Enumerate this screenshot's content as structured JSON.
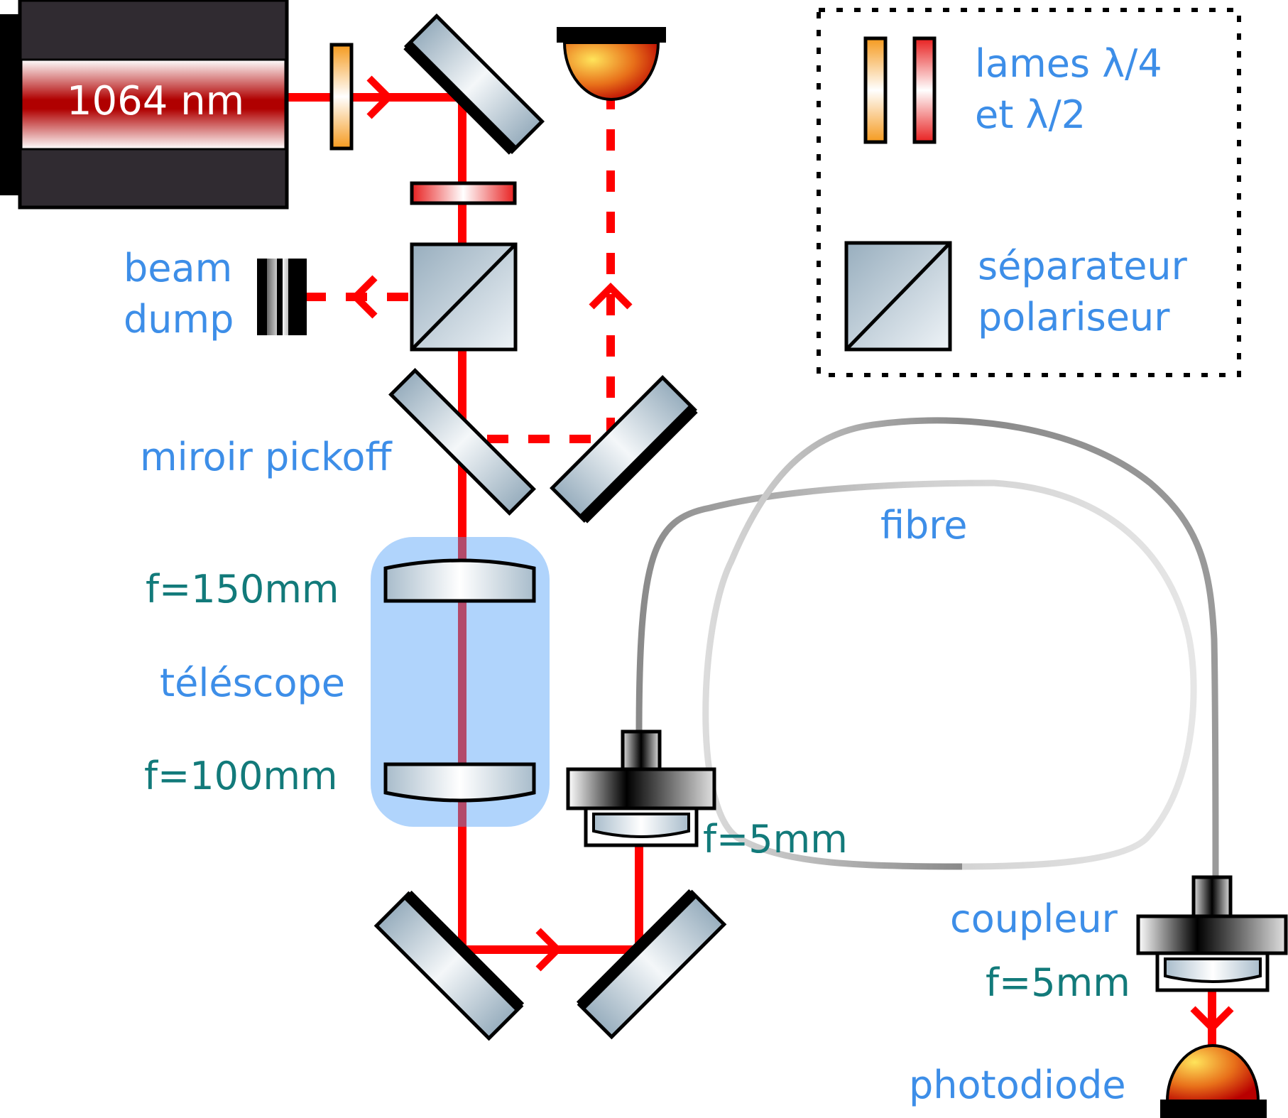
{
  "laser": {
    "label": "1064 nm"
  },
  "legend": {
    "waveplates_line1": "lames λ/4",
    "waveplates_line2": "et λ/2",
    "splitter_line1": "séparateur",
    "splitter_line2": "polariseur"
  },
  "labels": {
    "beam_dump_line1": "beam",
    "beam_dump_line2": "dump",
    "pickoff": "miroir pickoff",
    "lens1": "f=150mm",
    "telescope": "téléscope",
    "lens2": "f=100mm",
    "collimator_focal": "f=5mm",
    "fiber": "fibre",
    "coupler": "coupleur",
    "coupler_focal": "f=5mm",
    "photodiode": "photodiode"
  },
  "colors": {
    "beam": "#ff0000",
    "label_blue": "#3d8ee8",
    "label_teal": "#127a7a",
    "telescope_highlight": "#b0d4fc"
  }
}
